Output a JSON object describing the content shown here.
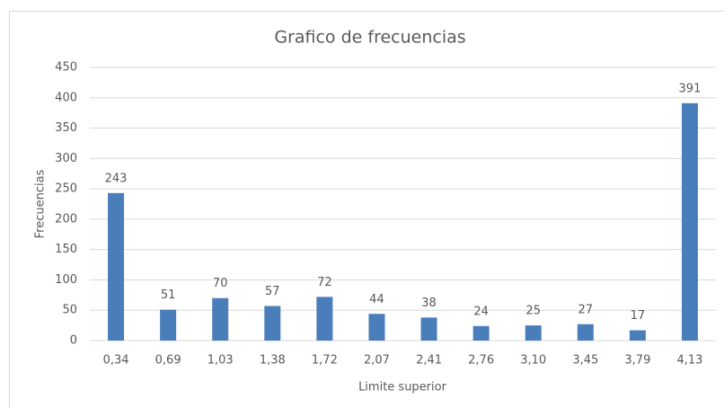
{
  "chart_data": {
    "type": "bar",
    "title": "Grafico de frecuencias",
    "x_label": "Limite superior",
    "y_label": "Frecuencias",
    "categories": [
      "0,34",
      "0,69",
      "1,03",
      "1,38",
      "1,72",
      "2,07",
      "2,41",
      "2,76",
      "3,10",
      "3,45",
      "3,79",
      "4,13"
    ],
    "values": [
      243,
      51,
      70,
      57,
      72,
      44,
      38,
      24,
      25,
      27,
      17,
      391
    ],
    "color": "#4a7ebb",
    "ylim": [
      0,
      450
    ],
    "yticks": [
      0,
      50,
      100,
      150,
      200,
      250,
      300,
      350,
      400,
      450
    ],
    "grid": true,
    "data_labels": true
  }
}
